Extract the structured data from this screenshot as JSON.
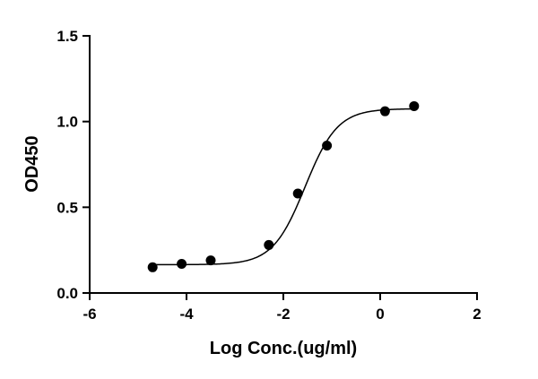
{
  "chart_data": {
    "type": "scatter",
    "title": "",
    "xlabel": "Log Conc.(ug/ml)",
    "ylabel": "OD450",
    "xlim": [
      -6,
      2
    ],
    "ylim": [
      0,
      1.5
    ],
    "x_ticks": [
      -6,
      -4,
      -2,
      0,
      2
    ],
    "y_ticks": [
      0.0,
      0.5,
      1.0,
      1.5
    ],
    "x_tick_labels": [
      "-6",
      "-4",
      "-2",
      "0",
      "2"
    ],
    "y_tick_labels": [
      "0.0",
      "0.5",
      "1.0",
      "1.5"
    ],
    "grid": false,
    "legend": "none",
    "series": [
      {
        "x": [
          -4.7,
          -4.1,
          -3.5,
          -2.3,
          -1.7,
          -1.1,
          0.1,
          0.7
        ],
        "y": [
          0.15,
          0.17,
          0.19,
          0.28,
          0.58,
          0.86,
          1.06,
          1.09
        ],
        "marker_color": "#000000"
      }
    ],
    "fit_curve": {
      "model": "four-parameter logistic",
      "bottom": 0.165,
      "top": 1.075,
      "logEC50": -1.55,
      "hill_slope": 1.3,
      "x_range": [
        -4.7,
        0.7
      ],
      "line_color": "#000000"
    }
  }
}
